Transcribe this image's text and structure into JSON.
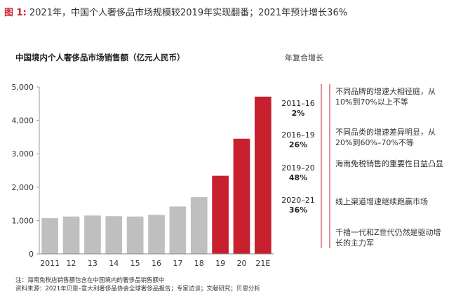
{
  "figure": {
    "number": "图 1:",
    "title": "2021年，中国个人奢侈品市场规模较2019年实现翻番；2021年预计增长36%"
  },
  "chart_data": {
    "type": "bar",
    "title": "中国境内个人奢侈品市场销售额（亿元人民币）",
    "categories": [
      "2011",
      "12",
      "13",
      "14",
      "15",
      "16",
      "17",
      "18",
      "19",
      "20",
      "21E"
    ],
    "values": [
      1070,
      1120,
      1150,
      1130,
      1120,
      1170,
      1420,
      1700,
      2340,
      3450,
      4710
    ],
    "highlighted": [
      false,
      false,
      false,
      false,
      false,
      false,
      false,
      false,
      true,
      true,
      true
    ],
    "colors": {
      "base": "#bfbfbf",
      "highlight": "#c8202f",
      "axis": "#999999",
      "grid": "#dddddd"
    },
    "ylim": [
      0,
      5000
    ],
    "yticks": [
      0,
      1000,
      2000,
      3000,
      4000,
      5000
    ],
    "ytick_labels": [
      "0",
      "1,000",
      "2,000",
      "3,000",
      "4,000",
      "5,000"
    ],
    "grid": true,
    "xlabel": "",
    "ylabel": ""
  },
  "cagr": {
    "header": "年复合增长",
    "periods": [
      {
        "period": "2011–16",
        "value": "2%"
      },
      {
        "period": "2016–19",
        "value": "26%"
      },
      {
        "period": "2019–20",
        "value": "48%"
      },
      {
        "period": "2020–21",
        "value": "36%"
      }
    ]
  },
  "notes": [
    "不同品牌的增速大相径庭，从10%到70%以上不等",
    "不同品类的增速差异明显，从20%到60%–70%不等",
    "海南免税销售的重要性日益凸显",
    "线上渠道增速继续跑赢市场",
    "千禧一代和Z世代仍然是驱动增长的主力军"
  ],
  "footnotes": [
    "注：海南免税店销售额包含在中国境内的奢侈品销售额中",
    "资料来源：2021年贝恩–意大利奢侈品协会全球奢侈品报告；专家访谈；文献研究；贝恩分析"
  ]
}
